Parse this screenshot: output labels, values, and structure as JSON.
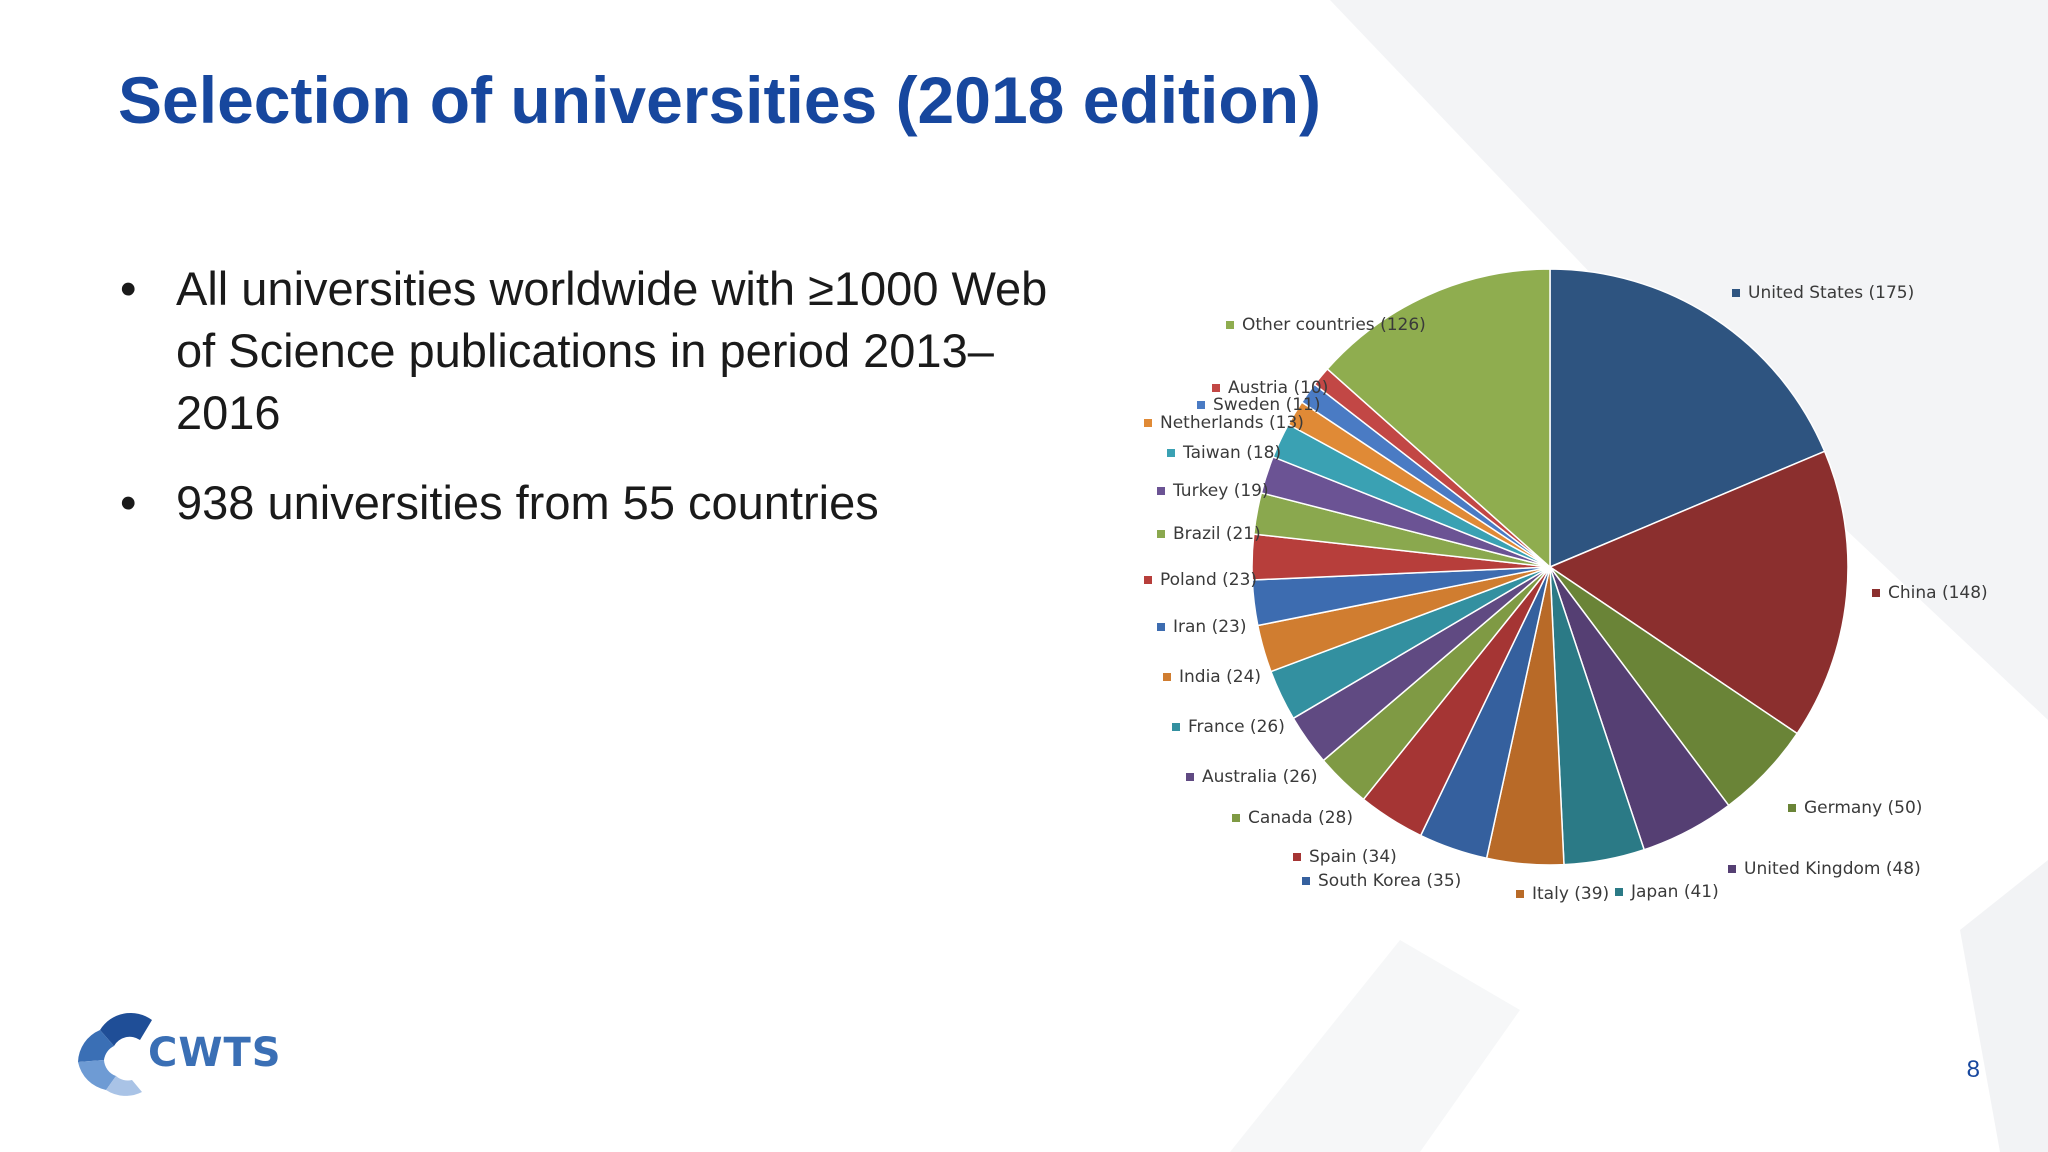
{
  "slide": {
    "title": "Selection of universities (2018 edition)",
    "bullets": [
      "All universities worldwide with ≥1000 Web of Science publications in period 2013–2016",
      "938 universities from 55 countries"
    ],
    "bullet_symbol": "•",
    "page_number": "8",
    "logo_text": "CWTS"
  },
  "chart_data": {
    "type": "pie",
    "start_angle_deg": 0,
    "direction": "clockwise",
    "slices": [
      {
        "label": "United States (175)",
        "value": 175,
        "color": "#2e5480"
      },
      {
        "label": "China (148)",
        "value": 148,
        "color": "#8b2f2e"
      },
      {
        "label": "Germany (50)",
        "value": 50,
        "color": "#6a8437"
      },
      {
        "label": "United Kingdom (48)",
        "value": 48,
        "color": "#553f73"
      },
      {
        "label": "Japan (41)",
        "value": 41,
        "color": "#2b7a86"
      },
      {
        "label": "Italy (39)",
        "value": 39,
        "color": "#b86a28"
      },
      {
        "label": "South Korea (35)",
        "value": 35,
        "color": "#35609e"
      },
      {
        "label": "Spain (34)",
        "value": 34,
        "color": "#a53534"
      },
      {
        "label": "Canada (28)",
        "value": 28,
        "color": "#7f9a44"
      },
      {
        "label": "Australia (26)",
        "value": 26,
        "color": "#604a82"
      },
      {
        "label": "France (26)",
        "value": 26,
        "color": "#3390a0"
      },
      {
        "label": "India (24)",
        "value": 24,
        "color": "#d07d30"
      },
      {
        "label": "Iran (23)",
        "value": 23,
        "color": "#3d6cb0"
      },
      {
        "label": "Poland (23)",
        "value": 23,
        "color": "#b73e3b"
      },
      {
        "label": "Brazil (21)",
        "value": 21,
        "color": "#8aa84e"
      },
      {
        "label": "Turkey (19)",
        "value": 19,
        "color": "#6b5394"
      },
      {
        "label": "Taiwan (18)",
        "value": 18,
        "color": "#3aa1b3"
      },
      {
        "label": "Netherlands (13)",
        "value": 13,
        "color": "#e08a36"
      },
      {
        "label": "Sweden (11)",
        "value": 11,
        "color": "#4a7bc4"
      },
      {
        "label": "Austria (10)",
        "value": 10,
        "color": "#c24745"
      },
      {
        "label": "Other countries (126)",
        "value": 126,
        "color": "#8fad4f"
      }
    ]
  },
  "colors": {
    "title": "#17479e",
    "text": "#1a1a1a",
    "logo": "#3a6fb5"
  }
}
